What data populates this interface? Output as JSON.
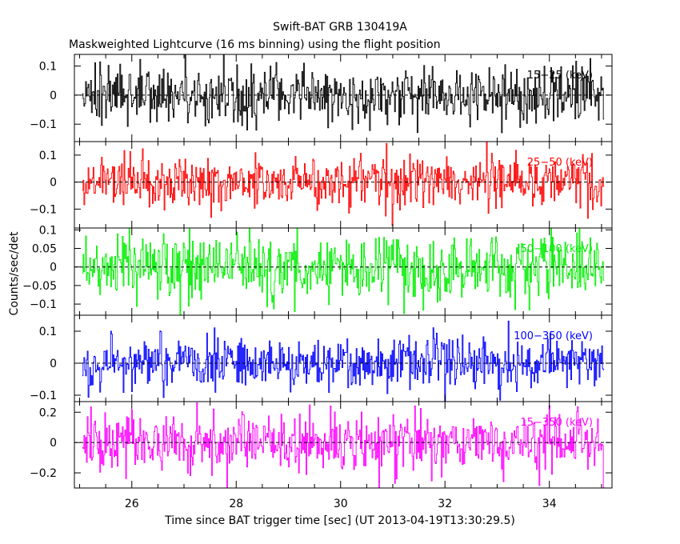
{
  "chart_data": {
    "type": "line",
    "title": "Swift-BAT GRB 130419A",
    "subtitle": "Maskweighted Lightcurve (16 ms binning) using the flight position",
    "xlabel": "Time since BAT trigger time [sec] (UT 2013-04-19T13:30:29.5)",
    "ylabel": "Counts/sec/det",
    "xlim": [
      24.9,
      35.2
    ],
    "x_ticks": [
      26,
      28,
      30,
      32,
      34
    ],
    "bin_width_s": 0.016,
    "x_start": 25.05,
    "x_end": 35.05,
    "panels": [
      {
        "name": "15-25 keV",
        "label": "15−25 (keV)",
        "color": "#000000",
        "ylim": [
          -0.16,
          0.14
        ],
        "ticks": [
          -0.1,
          0,
          0.1
        ],
        "tick_labels": [
          "−0.1",
          "0",
          "0.1"
        ],
        "noise_sd": 0.05,
        "mean": 0.0
      },
      {
        "name": "25-50 keV",
        "label": "25−50 (keV)",
        "color": "#ff0000",
        "ylim": [
          -0.17,
          0.15
        ],
        "ticks": [
          -0.1,
          0,
          0.1
        ],
        "tick_labels": [
          "−0.1",
          "0",
          "0.1"
        ],
        "noise_sd": 0.048,
        "mean": 0.0
      },
      {
        "name": "50-100 keV",
        "label": "50−100 (keV)",
        "color": "#00ee00",
        "ylim": [
          -0.13,
          0.105
        ],
        "ticks": [
          -0.1,
          -0.05,
          0,
          0.05,
          0.1
        ],
        "tick_labels": [
          "−0.1",
          "−0.05",
          "0",
          "0.05",
          "0.1"
        ],
        "noise_sd": 0.045,
        "mean": 0.0
      },
      {
        "name": "100-350 keV",
        "label": "100−350 (keV)",
        "color": "#0000ff",
        "ylim": [
          -0.12,
          0.15
        ],
        "ticks": [
          -0.1,
          0,
          0.1
        ],
        "tick_labels": [
          "−0.1",
          "0",
          "0.1"
        ],
        "noise_sd": 0.04,
        "mean": 0.0
      },
      {
        "name": "15-350 keV",
        "label": "15−350 (keV)",
        "color": "#ff00ff",
        "ylim": [
          -0.3,
          0.27
        ],
        "ticks": [
          -0.2,
          0,
          0.2
        ],
        "tick_labels": [
          "−0.2",
          "0",
          "0.2"
        ],
        "noise_sd": 0.1,
        "mean": 0.0
      }
    ]
  }
}
